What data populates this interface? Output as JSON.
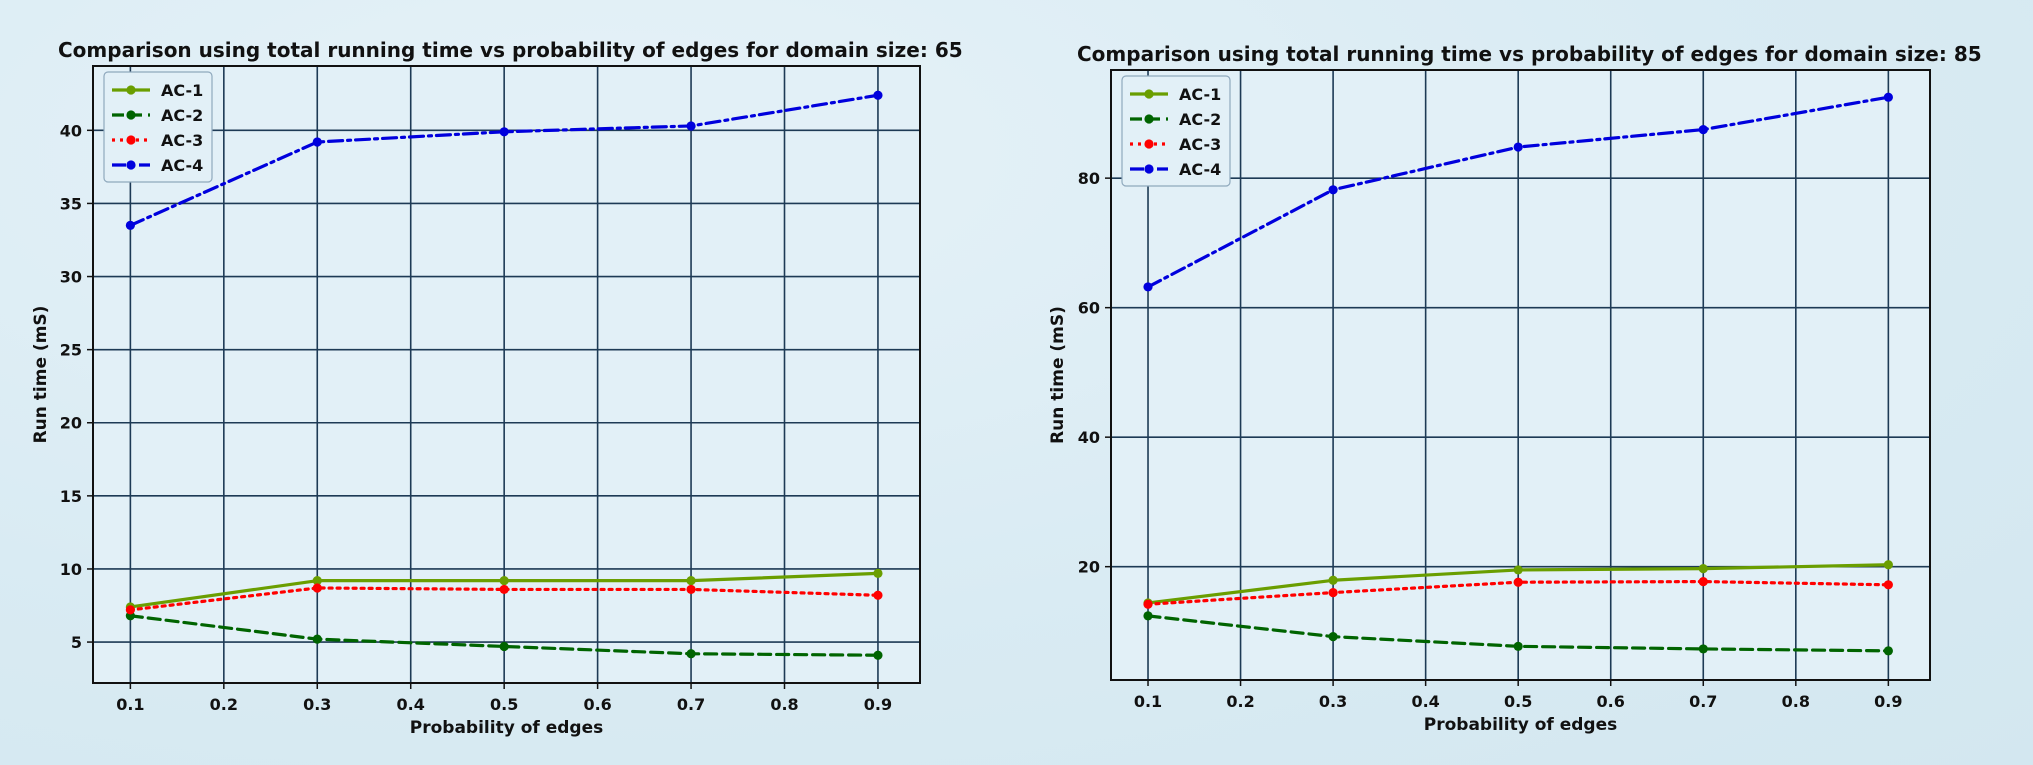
{
  "chart_data": [
    {
      "type": "line",
      "title": "Comparison using total running time vs probability of edges for domain size: 65",
      "xlabel": "Probability of edges",
      "ylabel": "Run time (mS)",
      "x": [
        0.1,
        0.3,
        0.5,
        0.7,
        0.9
      ],
      "xticks": [
        0.1,
        0.2,
        0.3,
        0.4,
        0.5,
        0.6,
        0.7,
        0.8,
        0.9
      ],
      "yticks": [
        5,
        10,
        15,
        20,
        25,
        30,
        35,
        40
      ],
      "xlim": [
        0.06,
        0.945
      ],
      "ylim": [
        2.2,
        44.4
      ],
      "grid": true,
      "legend": "top-left",
      "series": [
        {
          "name": "AC-1",
          "color": "#6a9e00",
          "style": "solid",
          "values": [
            7.4,
            9.2,
            9.2,
            9.2,
            9.7
          ]
        },
        {
          "name": "AC-2",
          "color": "#006400",
          "style": "dashed",
          "values": [
            6.8,
            5.2,
            4.7,
            4.2,
            4.1
          ]
        },
        {
          "name": "AC-3",
          "color": "#ff0000",
          "style": "dotted",
          "values": [
            7.2,
            8.7,
            8.6,
            8.6,
            8.2
          ]
        },
        {
          "name": "AC-4",
          "color": "#0000dd",
          "style": "dashdot",
          "values": [
            33.5,
            39.2,
            39.9,
            40.3,
            42.4
          ]
        }
      ]
    },
    {
      "type": "line",
      "title": "Comparison using total running time vs probability of edges for domain size: 85",
      "xlabel": "Probability of edges",
      "ylabel": "Run time (mS)",
      "x": [
        0.1,
        0.3,
        0.5,
        0.7,
        0.9
      ],
      "xticks": [
        0.1,
        0.2,
        0.3,
        0.4,
        0.5,
        0.6,
        0.7,
        0.8,
        0.9
      ],
      "yticks": [
        20,
        40,
        60,
        80
      ],
      "xlim": [
        0.06,
        0.945
      ],
      "ylim": [
        2.5,
        96.7
      ],
      "grid": true,
      "legend": "top-left",
      "series": [
        {
          "name": "AC-1",
          "color": "#6a9e00",
          "style": "solid",
          "values": [
            14.4,
            17.9,
            19.5,
            19.7,
            20.3
          ]
        },
        {
          "name": "AC-2",
          "color": "#006400",
          "style": "dashed",
          "values": [
            12.4,
            9.2,
            7.7,
            7.3,
            7.0
          ]
        },
        {
          "name": "AC-3",
          "color": "#ff0000",
          "style": "dotted",
          "values": [
            14.2,
            16.0,
            17.6,
            17.7,
            17.2
          ]
        },
        {
          "name": "AC-4",
          "color": "#0000dd",
          "style": "dashdot",
          "values": [
            63.2,
            78.2,
            84.8,
            87.5,
            92.5
          ]
        }
      ]
    }
  ]
}
